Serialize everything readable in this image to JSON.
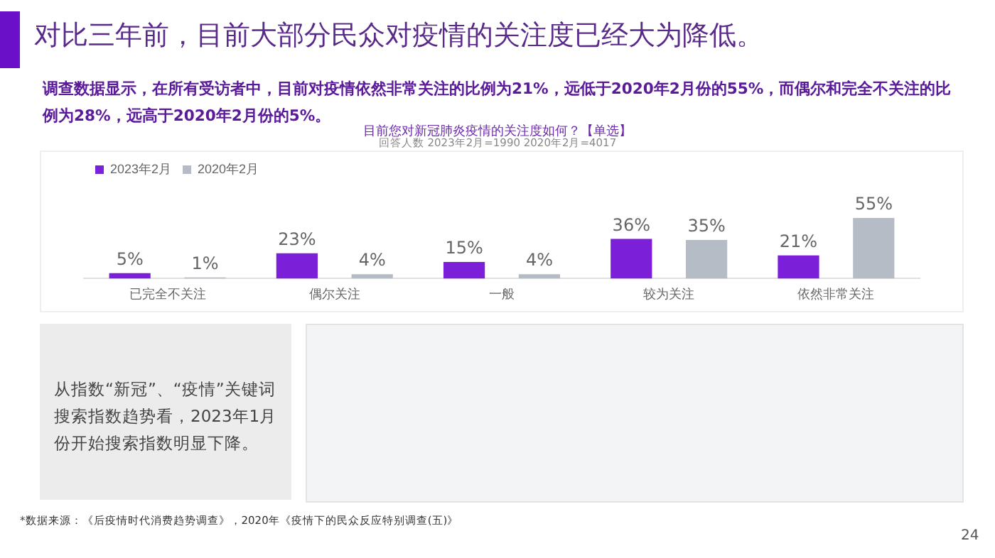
{
  "chart_data": {
    "type": "bar",
    "title": "目前您对新冠肺炎疫情的关注度如何？【单选】",
    "subtitle": "回答人数 2023年2月=1990  2020年2月=4017",
    "categories": [
      "已完全不关注",
      "偶尔关注",
      "一般",
      "较为关注",
      "依然非常关注"
    ],
    "series": [
      {
        "name": "2023年2月",
        "color": "#7b1fd8",
        "values": [
          5,
          23,
          15,
          36,
          21
        ],
        "value_labels": [
          "5%",
          "23%",
          "15%",
          "36%",
          "21%"
        ]
      },
      {
        "name": "2020年2月",
        "color": "#b6bcc5",
        "values": [
          1,
          4,
          4,
          35,
          55
        ],
        "value_labels": [
          "1%",
          "4%",
          "4%",
          "35%",
          "55%"
        ]
      }
    ],
    "tick_labels": "x",
    "legend": "top left",
    "grid": false,
    "annotations": [
      "对比三年前，目前大部分民众对疫情的关注度已经大为降低。",
      "调查数据显示，在所有受访者中，目前对疫情依然非常关注的比例为21%，远低于2020年2月份的55%，而偶尔和完全不关注的比例为28%，远高于2020年2月份的5%。",
      "从指数“新冠”、“疫情”关键词搜索指数趋势看，2023年1月份开始搜索指数明显下降。",
      "*数据来源：《后疫情时代消费趋势调查》，2020年《疫情下的民众反应特别调查(五)》",
      "24"
    ]
  }
}
